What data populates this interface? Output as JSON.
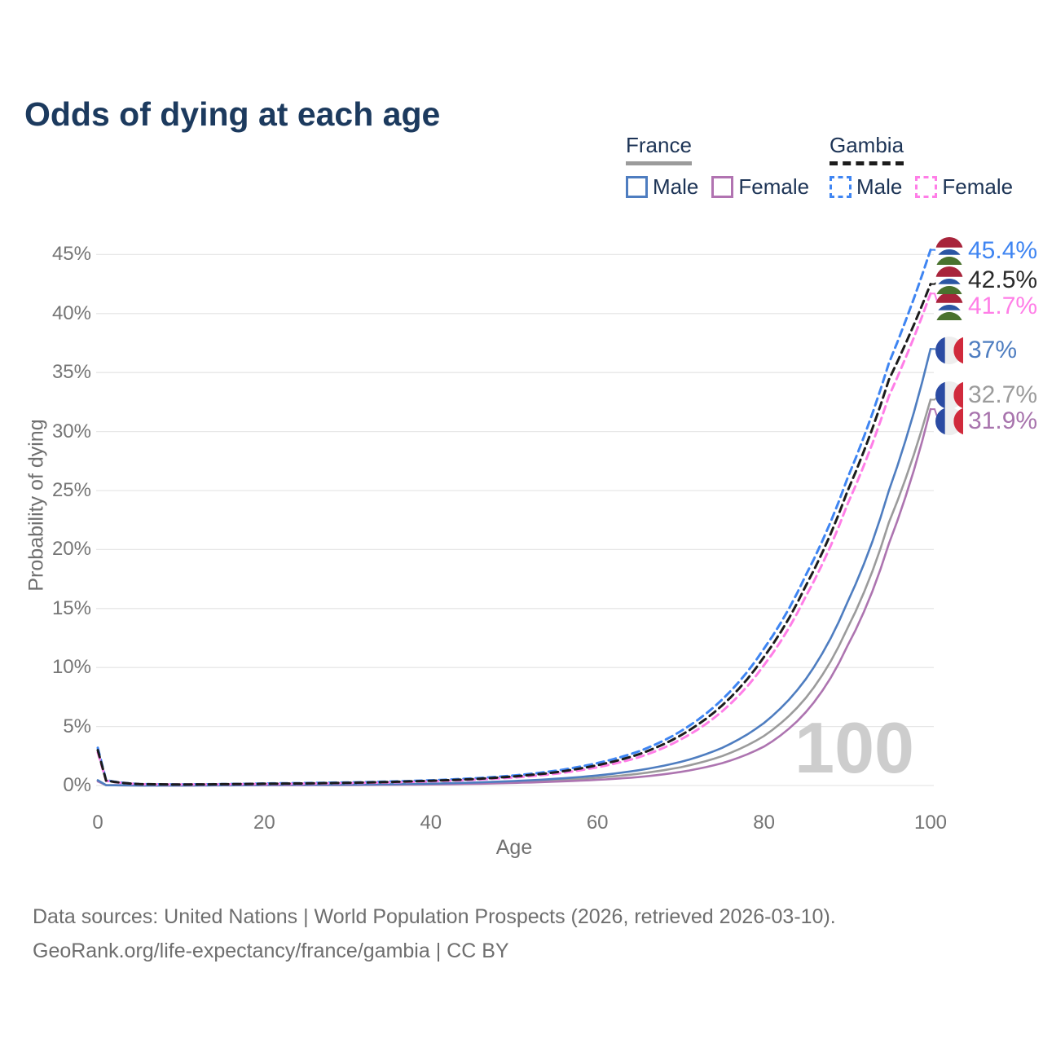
{
  "title": "Odds of dying at each age",
  "legend": {
    "groups": [
      {
        "name": "France",
        "line_style": "solid",
        "line_color": "#9b9b9b",
        "items": [
          {
            "label": "Male",
            "color": "#4e7dc0",
            "style": "solid"
          },
          {
            "label": "Female",
            "color": "#b173b1",
            "style": "solid"
          }
        ]
      },
      {
        "name": "Gambia",
        "line_style": "dashed",
        "line_color": "#1c1c1c",
        "items": [
          {
            "label": "Male",
            "color": "#3f85f2",
            "style": "dashed"
          },
          {
            "label": "Female",
            "color": "#ff7ee7",
            "style": "dashed"
          }
        ]
      }
    ]
  },
  "chart_data": {
    "type": "line",
    "title": "Odds of dying at each age",
    "xlabel": "Age",
    "ylabel": "Probability of dying",
    "xlim": [
      0,
      100
    ],
    "ylim": [
      0,
      45
    ],
    "x_ticks": [
      0,
      20,
      40,
      60,
      80,
      100
    ],
    "y_ticks": [
      0,
      5,
      10,
      15,
      20,
      25,
      30,
      35,
      40,
      45
    ],
    "y_tick_labels": [
      "0%",
      "5%",
      "10%",
      "15%",
      "20%",
      "25%",
      "30%",
      "35%",
      "40%",
      "45%"
    ],
    "grid": true,
    "legend_position": "top-right",
    "watermark": "100",
    "unit": "percent",
    "series": [
      {
        "id": "france_both",
        "name": "France Both sexes",
        "country": "france",
        "color": "#9b9b9b",
        "dash": "solid",
        "end_label": "32.7%",
        "end_label_color": "#9b9b9b",
        "points": [
          [
            0,
            0.4
          ],
          [
            1,
            0.028
          ],
          [
            5,
            0.009
          ],
          [
            10,
            0.009
          ],
          [
            15,
            0.018
          ],
          [
            20,
            0.04
          ],
          [
            25,
            0.05
          ],
          [
            30,
            0.06
          ],
          [
            35,
            0.085
          ],
          [
            40,
            0.125
          ],
          [
            45,
            0.2
          ],
          [
            50,
            0.3
          ],
          [
            55,
            0.45
          ],
          [
            60,
            0.66
          ],
          [
            65,
            1.0
          ],
          [
            70,
            1.55
          ],
          [
            75,
            2.5
          ],
          [
            80,
            4.2
          ],
          [
            85,
            7.4
          ],
          [
            90,
            13.3
          ],
          [
            95,
            22.3
          ],
          [
            100,
            32.7
          ]
        ]
      },
      {
        "id": "france_female",
        "name": "France Female",
        "country": "france",
        "color": "#ad74b0",
        "dash": "solid",
        "end_label": "31.9%",
        "end_label_color": "#a874ad",
        "points": [
          [
            0,
            0.35
          ],
          [
            1,
            0.025
          ],
          [
            5,
            0.008
          ],
          [
            10,
            0.008
          ],
          [
            15,
            0.015
          ],
          [
            20,
            0.025
          ],
          [
            25,
            0.03
          ],
          [
            30,
            0.04
          ],
          [
            35,
            0.06
          ],
          [
            40,
            0.09
          ],
          [
            45,
            0.14
          ],
          [
            50,
            0.22
          ],
          [
            55,
            0.33
          ],
          [
            60,
            0.48
          ],
          [
            65,
            0.72
          ],
          [
            70,
            1.15
          ],
          [
            75,
            1.9
          ],
          [
            80,
            3.3
          ],
          [
            85,
            6.2
          ],
          [
            90,
            11.8
          ],
          [
            95,
            20.5
          ],
          [
            100,
            31.9
          ]
        ]
      },
      {
        "id": "france_male",
        "name": "France Male",
        "country": "france",
        "color": "#4e7dc0",
        "dash": "solid",
        "end_label": "37%",
        "end_label_color": "#4e7dc0",
        "points": [
          [
            0,
            0.45
          ],
          [
            1,
            0.03
          ],
          [
            5,
            0.01
          ],
          [
            10,
            0.01
          ],
          [
            15,
            0.02
          ],
          [
            20,
            0.06
          ],
          [
            25,
            0.07
          ],
          [
            30,
            0.08
          ],
          [
            35,
            0.11
          ],
          [
            40,
            0.16
          ],
          [
            45,
            0.25
          ],
          [
            50,
            0.38
          ],
          [
            55,
            0.57
          ],
          [
            60,
            0.85
          ],
          [
            65,
            1.3
          ],
          [
            70,
            2.0
          ],
          [
            75,
            3.2
          ],
          [
            80,
            5.3
          ],
          [
            85,
            9.0
          ],
          [
            90,
            15.5
          ],
          [
            95,
            25.0
          ],
          [
            100,
            37.0
          ]
        ]
      },
      {
        "id": "gambia_male",
        "name": "Gambia Male",
        "country": "gambia",
        "color": "#3f85f2",
        "dash": "dashed",
        "end_label": "45.4%",
        "end_label_color": "#3f85f2",
        "points": [
          [
            0,
            3.2
          ],
          [
            1,
            0.45
          ],
          [
            5,
            0.12
          ],
          [
            10,
            0.09
          ],
          [
            15,
            0.12
          ],
          [
            20,
            0.17
          ],
          [
            25,
            0.21
          ],
          [
            30,
            0.26
          ],
          [
            35,
            0.33
          ],
          [
            40,
            0.44
          ],
          [
            45,
            0.6
          ],
          [
            50,
            0.85
          ],
          [
            55,
            1.25
          ],
          [
            60,
            1.9
          ],
          [
            65,
            2.9
          ],
          [
            70,
            4.6
          ],
          [
            75,
            7.3
          ],
          [
            80,
            11.6
          ],
          [
            85,
            17.8
          ],
          [
            90,
            26.0
          ],
          [
            95,
            35.8
          ],
          [
            100,
            45.4
          ]
        ]
      },
      {
        "id": "gambia_female",
        "name": "Gambia Female",
        "country": "gambia",
        "color": "#ff7ee7",
        "dash": "dashed",
        "end_label": "41.7%",
        "end_label_color": "#ff7ee7",
        "points": [
          [
            0,
            2.8
          ],
          [
            1,
            0.4
          ],
          [
            5,
            0.11
          ],
          [
            10,
            0.08
          ],
          [
            15,
            0.1
          ],
          [
            20,
            0.13
          ],
          [
            25,
            0.16
          ],
          [
            30,
            0.2
          ],
          [
            35,
            0.26
          ],
          [
            40,
            0.35
          ],
          [
            45,
            0.48
          ],
          [
            50,
            0.68
          ],
          [
            55,
            1.0
          ],
          [
            60,
            1.55
          ],
          [
            65,
            2.4
          ],
          [
            70,
            3.9
          ],
          [
            75,
            6.3
          ],
          [
            80,
            10.2
          ],
          [
            85,
            16.0
          ],
          [
            90,
            23.8
          ],
          [
            95,
            33.0
          ],
          [
            100,
            41.7
          ]
        ]
      },
      {
        "id": "gambia_both",
        "name": "Gambia Both sexes",
        "country": "gambia",
        "color": "#1c1c1c",
        "dash": "dashed",
        "end_label": "42.5%",
        "end_label_color": "#2a2a2a",
        "points": [
          [
            0,
            3.0
          ],
          [
            1,
            0.42
          ],
          [
            5,
            0.115
          ],
          [
            10,
            0.085
          ],
          [
            15,
            0.11
          ],
          [
            20,
            0.15
          ],
          [
            25,
            0.18
          ],
          [
            30,
            0.23
          ],
          [
            35,
            0.3
          ],
          [
            40,
            0.4
          ],
          [
            45,
            0.54
          ],
          [
            50,
            0.77
          ],
          [
            55,
            1.12
          ],
          [
            60,
            1.72
          ],
          [
            65,
            2.65
          ],
          [
            70,
            4.25
          ],
          [
            75,
            6.8
          ],
          [
            80,
            10.9
          ],
          [
            85,
            16.9
          ],
          [
            90,
            24.9
          ],
          [
            95,
            34.4
          ],
          [
            100,
            42.5
          ]
        ]
      }
    ],
    "flag_colors": {
      "france": {
        "blue": "#2b4ba3",
        "white": "#eeeeee",
        "red": "#d02a3c"
      },
      "gambia": {
        "red": "#a8243b",
        "white": "#ffffff",
        "blue": "#2b56a4",
        "green": "#49722e"
      }
    }
  },
  "footer": {
    "line1": "Data sources: United Nations | World Population Prospects (2026, retrieved 2026-03-10).",
    "line2": "GeoRank.org/life-expectancy/france/gambia | CC BY"
  }
}
